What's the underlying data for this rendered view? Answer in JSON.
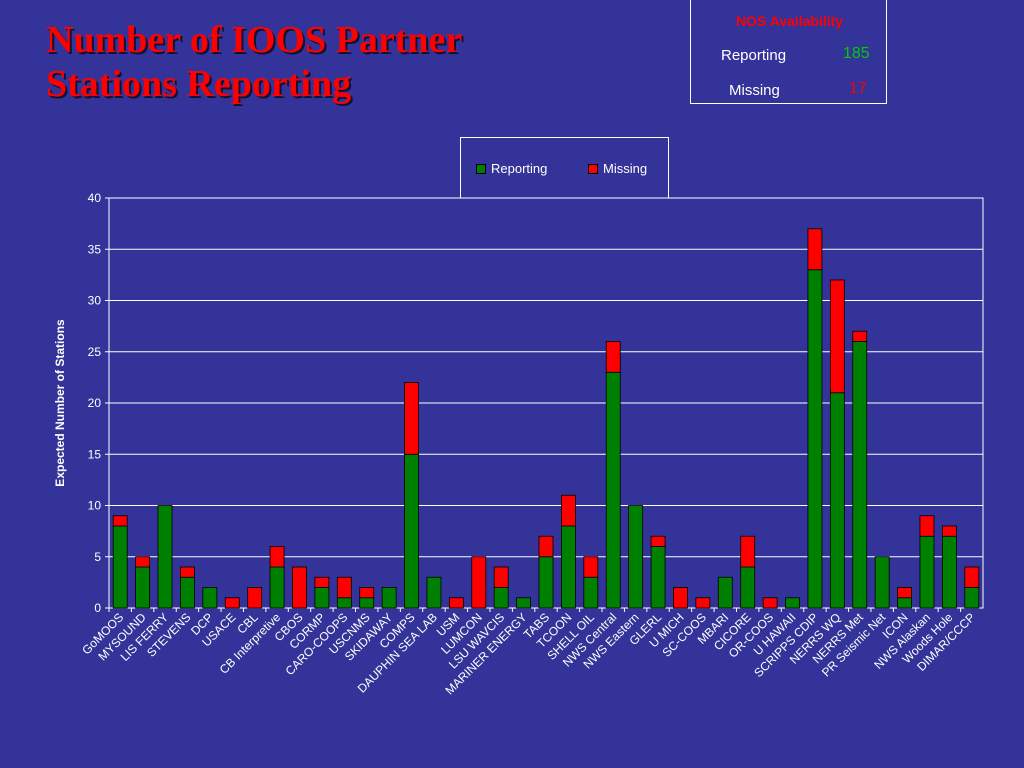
{
  "title": {
    "line1": "Number of IOOS Partner",
    "line2": "Stations Reporting"
  },
  "availability": {
    "heading": "NOS Availability",
    "reporting_label": "Reporting",
    "reporting_value": "185",
    "missing_label": "Missing",
    "missing_value": "17",
    "reporting_color": "#00cc00",
    "missing_color": "#ff0000"
  },
  "chart_data": {
    "type": "bar",
    "stacked": true,
    "ylabel": "Expected Number of Stations",
    "ylim": [
      0,
      40
    ],
    "yticks": [
      0,
      5,
      10,
      15,
      20,
      25,
      30,
      35,
      40
    ],
    "grid": true,
    "legend": "top-center",
    "categories": [
      "GoMOOS",
      "MYSOUND",
      "LIS FERRY",
      "STEVENS",
      "DCP",
      "USACE",
      "CBL",
      "CB Interpretive",
      "CBOS",
      "CORMP",
      "CARO-COOPS",
      "USCNMS",
      "SKIDAWAY",
      "COMPS",
      "DAUPHIN SEA LAB",
      "USM",
      "LUMCON",
      "LSU WAVCIS",
      "MARINER ENERGY",
      "TABS",
      "TCOON",
      "SHELL OIL",
      "NWS Central",
      "NWS Eastern",
      "GLERL",
      "U MICH",
      "SC-COOS",
      "MBARI",
      "CICORE",
      "OR-COOS",
      "U HAWAII",
      "SCRIPPS CDIP",
      "NERRS WQ",
      "NERRS Met",
      "PR Seismic Net",
      "ICON",
      "NWS Alaskan",
      "Woods Hole",
      "DIMAR/CCCP"
    ],
    "series": [
      {
        "name": "Reporting",
        "color": "#008000",
        "values": [
          8,
          4,
          10,
          3,
          2,
          0,
          0,
          4,
          0,
          2,
          1,
          1,
          2,
          15,
          3,
          0,
          0,
          2,
          1,
          5,
          8,
          3,
          23,
          10,
          6,
          0,
          0,
          3,
          4,
          0,
          1,
          33,
          21,
          26,
          5,
          1,
          7,
          7,
          2
        ]
      },
      {
        "name": "Missing",
        "color": "#ff0000",
        "values": [
          1,
          1,
          0,
          1,
          0,
          1,
          2,
          2,
          4,
          1,
          2,
          1,
          0,
          7,
          0,
          1,
          5,
          2,
          0,
          2,
          3,
          2,
          3,
          0,
          1,
          2,
          1,
          0,
          3,
          1,
          0,
          4,
          11,
          1,
          0,
          1,
          2,
          1,
          2
        ]
      }
    ]
  }
}
